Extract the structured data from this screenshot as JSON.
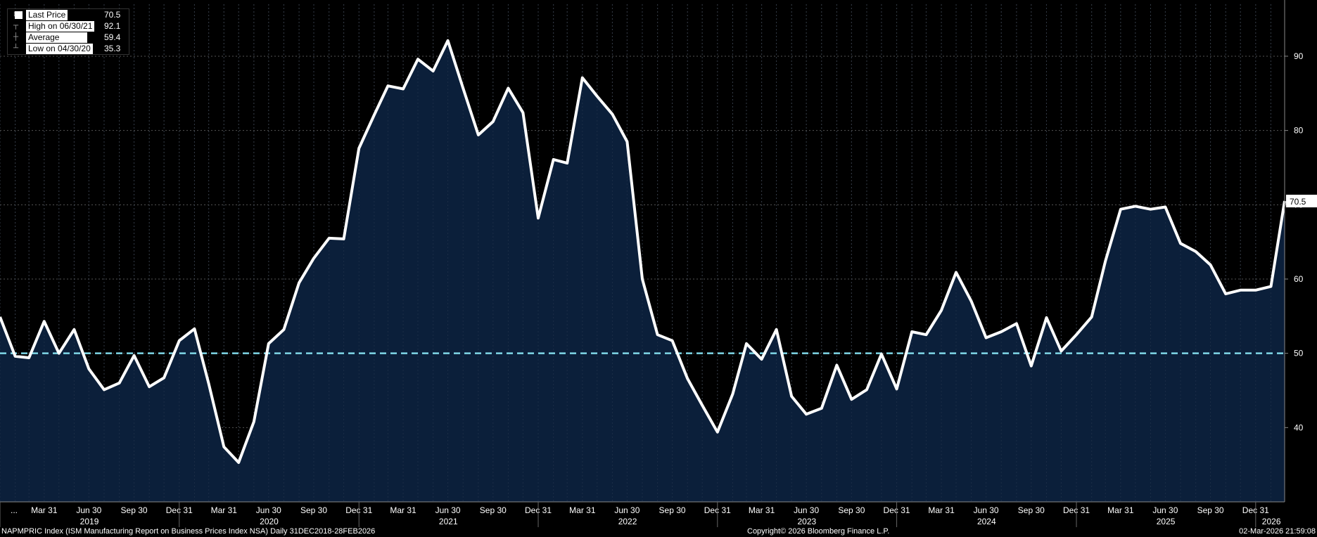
{
  "legend": {
    "last_label": "Last Price",
    "last_value": "70.5",
    "high_label": "High on 06/30/21",
    "high_value": "92.1",
    "avg_label": "Average",
    "avg_value": "59.4",
    "low_label": "Low on 04/30/20",
    "low_value": "35.3"
  },
  "footer": {
    "left": "NAPMPRIC Index (ISM Manufacturing Report on Business Prices Index NSA) Daily 31DEC2018-28FEB2026",
    "center": "Copyright© 2026 Bloomberg Finance L.P.",
    "right": "02-Mar-2026 21:59:08"
  },
  "colors": {
    "background": "#000000",
    "area_fill": "#0b1f3a",
    "line": "#ffffff",
    "reference_line": "#7fd8e8",
    "grid": "#3a3a3a"
  },
  "chart_data": {
    "type": "area",
    "series": [
      {
        "x": [
          "2018-12-31",
          "2019-01-31",
          "2019-02-28",
          "2019-03-31",
          "2019-04-30",
          "2019-05-31",
          "2019-06-30",
          "2019-07-31",
          "2019-08-31",
          "2019-09-30",
          "2019-10-31",
          "2019-11-30",
          "2019-12-31",
          "2020-01-31",
          "2020-02-29",
          "2020-03-31",
          "2020-04-30",
          "2020-05-31",
          "2020-06-30",
          "2020-07-31",
          "2020-08-31",
          "2020-09-30",
          "2020-10-31",
          "2020-11-30",
          "2020-12-31",
          "2021-01-31",
          "2021-02-28",
          "2021-03-31",
          "2021-04-30",
          "2021-05-31",
          "2021-06-30",
          "2021-07-31",
          "2021-08-31",
          "2021-09-30",
          "2021-10-31",
          "2021-11-30",
          "2021-12-31",
          "2022-01-31",
          "2022-02-28",
          "2022-03-31",
          "2022-04-30",
          "2022-05-31",
          "2022-06-30",
          "2022-07-31",
          "2022-08-31",
          "2022-09-30",
          "2022-10-31",
          "2022-11-30",
          "2022-12-31",
          "2023-01-31",
          "2023-02-28",
          "2023-03-31",
          "2023-04-30",
          "2023-05-31",
          "2023-06-30",
          "2023-07-31",
          "2023-08-31",
          "2023-09-30",
          "2023-10-31",
          "2023-11-30",
          "2023-12-31",
          "2024-01-31",
          "2024-02-29",
          "2024-03-31",
          "2024-04-30",
          "2024-05-31",
          "2024-06-30",
          "2024-07-31",
          "2024-08-31",
          "2024-09-30",
          "2024-10-31",
          "2024-11-30",
          "2024-12-31",
          "2025-01-31",
          "2025-02-28",
          "2025-03-31",
          "2025-04-30",
          "2025-05-31",
          "2025-06-30",
          "2025-07-31",
          "2025-08-31",
          "2025-09-30",
          "2025-10-31",
          "2025-11-30",
          "2025-12-31",
          "2026-01-31",
          "2026-02-28"
        ],
        "values": [
          54.9,
          49.6,
          49.4,
          54.3,
          50.0,
          53.2,
          47.9,
          45.1,
          46.0,
          49.7,
          45.5,
          46.7,
          51.7,
          53.3,
          45.9,
          37.4,
          35.3,
          40.8,
          51.3,
          53.2,
          59.5,
          62.8,
          65.5,
          65.4,
          77.6,
          82.1,
          86.0,
          85.6,
          89.6,
          88.0,
          92.1,
          85.7,
          79.4,
          81.2,
          85.7,
          82.4,
          68.2,
          76.1,
          75.6,
          87.1,
          84.6,
          82.2,
          78.5,
          60.0,
          52.5,
          51.7,
          46.6,
          43.0,
          39.4,
          44.5,
          51.3,
          49.2,
          53.2,
          44.2,
          41.8,
          42.6,
          48.4,
          43.8,
          45.1,
          49.9,
          45.2,
          52.9,
          52.5,
          55.8,
          60.9,
          57.0,
          52.1,
          52.9,
          54.0,
          48.3,
          54.8,
          50.3,
          52.5,
          54.9,
          62.4,
          69.4,
          69.8,
          69.4,
          69.7,
          64.8,
          63.7,
          61.9,
          58.0,
          58.5,
          58.5,
          59.0,
          70.5
        ]
      }
    ],
    "reference_line": {
      "name": "50 level",
      "value": 50
    },
    "ylim": [
      30,
      97
    ],
    "yticks": [
      40,
      50,
      60,
      70,
      80,
      90
    ],
    "last_value_label": "70.5",
    "xlim": [
      "2018-12-31",
      "2026-02-28"
    ],
    "xtick_labels": [
      "...",
      "Mar 31",
      "Jun 30",
      "Sep 30",
      "Dec 31",
      "Mar 31",
      "Jun 30",
      "Sep 30",
      "Dec 31",
      "Mar 31",
      "Jun 30",
      "Sep 30",
      "Dec 31",
      "Mar 31",
      "Jun 30",
      "Sep 30",
      "Dec 31",
      "Mar 31",
      "Jun 30",
      "Sep 30",
      "Dec 31",
      "Mar 31",
      "Jun 30",
      "Sep 30",
      "Dec 31",
      "Mar 31",
      "Jun 30",
      "Sep 30",
      "Dec 31",
      "..."
    ],
    "year_labels": [
      {
        "label": "2019",
        "date": "2019-07-01"
      },
      {
        "label": "2020",
        "date": "2020-07-01"
      },
      {
        "label": "2021",
        "date": "2021-07-01"
      },
      {
        "label": "2022",
        "date": "2022-07-01"
      },
      {
        "label": "2023",
        "date": "2023-07-01"
      },
      {
        "label": "2024",
        "date": "2024-07-01"
      },
      {
        "label": "2025",
        "date": "2025-07-01"
      },
      {
        "label": "2026",
        "date": "2026-02-01"
      }
    ],
    "grid": true
  }
}
